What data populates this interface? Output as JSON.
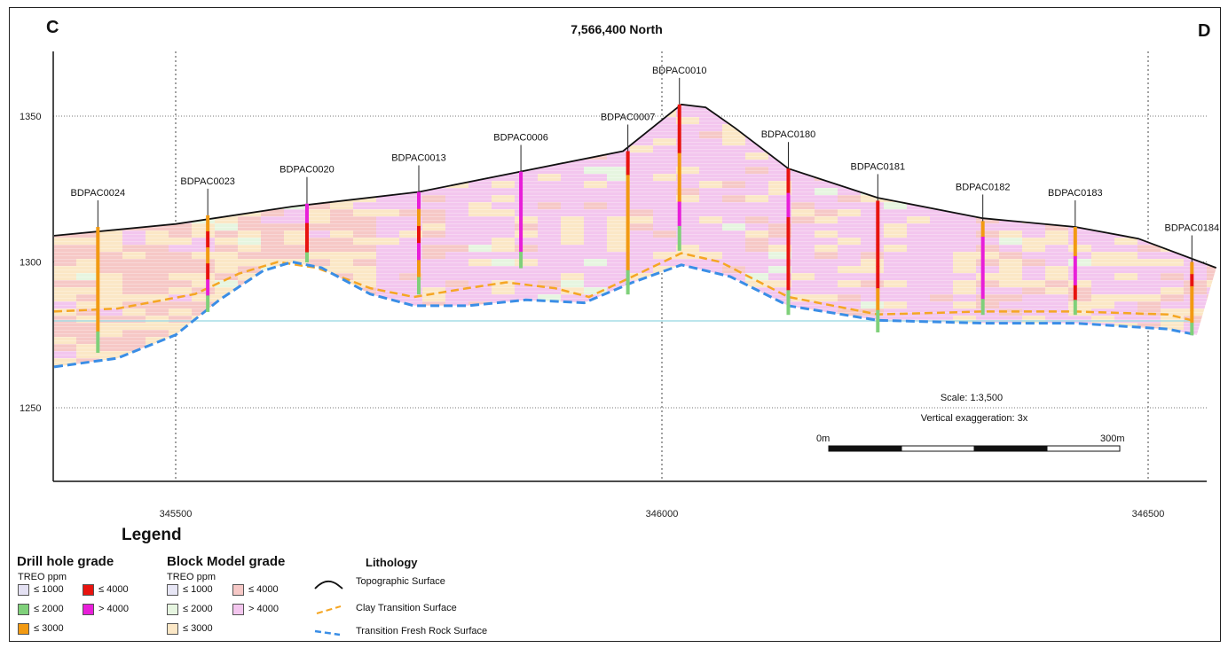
{
  "header": {
    "left_label": "C",
    "right_label": "D",
    "title": "7,566,400 North"
  },
  "axes": {
    "y_ticks": [
      "1350",
      "1300",
      "1250"
    ],
    "x_ticks": [
      "345500",
      "346000",
      "346500"
    ]
  },
  "colors": {
    "topographic": "#111111",
    "clay_transition": "#f5a623",
    "fresh_rock": "#3a8ee6",
    "block_low": "#fbe7c6",
    "block_2000": "#e6f5e0",
    "block_4000": "#f6c8c6",
    "block_high": "#f3c6ee",
    "reference_line": "#a6dde6"
  },
  "drill_holes": [
    {
      "name": "BDPAC0024",
      "easting": 345420,
      "collar": 1312,
      "bottom": 1269
    },
    {
      "name": "BDPAC0023",
      "easting": 345533,
      "collar": 1316,
      "bottom": 1283
    },
    {
      "name": "BDPAC0020",
      "easting": 345635,
      "collar": 1320,
      "bottom": 1300
    },
    {
      "name": "BDPAC0013",
      "easting": 345750,
      "collar": 1324,
      "bottom": 1289
    },
    {
      "name": "BDPAC0006",
      "easting": 345855,
      "collar": 1331,
      "bottom": 1298
    },
    {
      "name": "BDPAC0007",
      "easting": 345965,
      "collar": 1338,
      "bottom": 1289
    },
    {
      "name": "BDPAC0010",
      "easting": 346018,
      "collar": 1354,
      "bottom": 1304
    },
    {
      "name": "BDPAC0180",
      "easting": 346130,
      "collar": 1332,
      "bottom": 1282
    },
    {
      "name": "BDPAC0181",
      "easting": 346222,
      "collar": 1321,
      "bottom": 1276
    },
    {
      "name": "BDPAC0182",
      "easting": 346330,
      "collar": 1314,
      "bottom": 1282
    },
    {
      "name": "BDPAC0183",
      "easting": 346425,
      "collar": 1312,
      "bottom": 1282
    },
    {
      "name": "BDPAC0184",
      "easting": 346545,
      "collar": 1300,
      "bottom": 1275
    }
  ],
  "surfaces": {
    "topographic": [
      [
        345375,
        1309
      ],
      [
        345500,
        1313
      ],
      [
        345620,
        1319
      ],
      [
        345750,
        1324
      ],
      [
        345855,
        1331
      ],
      [
        345960,
        1338
      ],
      [
        345990,
        1346
      ],
      [
        346020,
        1354
      ],
      [
        346045,
        1353
      ],
      [
        346075,
        1346
      ],
      [
        346130,
        1332
      ],
      [
        346222,
        1322
      ],
      [
        346330,
        1315
      ],
      [
        346425,
        1312
      ],
      [
        346490,
        1308
      ],
      [
        346570,
        1298
      ]
    ],
    "clay_transition": [
      [
        345375,
        1283
      ],
      [
        345440,
        1284
      ],
      [
        345520,
        1289
      ],
      [
        345565,
        1296
      ],
      [
        345605,
        1300
      ],
      [
        345645,
        1298
      ],
      [
        345700,
        1291
      ],
      [
        345745,
        1288
      ],
      [
        345800,
        1291
      ],
      [
        345840,
        1293
      ],
      [
        345890,
        1291
      ],
      [
        345925,
        1288
      ],
      [
        345970,
        1295
      ],
      [
        346020,
        1303
      ],
      [
        346060,
        1300
      ],
      [
        346130,
        1288
      ],
      [
        346222,
        1282
      ],
      [
        346330,
        1283
      ],
      [
        346425,
        1283
      ],
      [
        346520,
        1282
      ],
      [
        346545,
        1280
      ]
    ],
    "fresh_rock": [
      [
        345375,
        1264
      ],
      [
        345440,
        1267
      ],
      [
        345500,
        1275
      ],
      [
        345545,
        1287
      ],
      [
        345590,
        1297
      ],
      [
        345620,
        1300
      ],
      [
        345650,
        1298
      ],
      [
        345700,
        1289
      ],
      [
        345745,
        1285
      ],
      [
        345800,
        1285
      ],
      [
        345860,
        1287
      ],
      [
        345920,
        1286
      ],
      [
        345970,
        1293
      ],
      [
        346020,
        1299
      ],
      [
        346070,
        1295
      ],
      [
        346130,
        1285
      ],
      [
        346222,
        1280
      ],
      [
        346330,
        1279
      ],
      [
        346425,
        1279
      ],
      [
        346520,
        1277
      ],
      [
        346550,
        1275
      ]
    ]
  },
  "scale": {
    "scale_text": "Scale: 1:3,500",
    "exaggeration_text": "Vertical exaggeration: 3x",
    "left_label": "0m",
    "right_label": "300m"
  },
  "legend": {
    "title": "Legend",
    "drill_hole": {
      "heading": "Drill hole grade",
      "unit": "TREO ppm",
      "items": [
        {
          "label": "≤ 1000",
          "color": "#e4e1f3"
        },
        {
          "label": "≤ 4000",
          "color": "#e8140f"
        },
        {
          "label": "≤ 2000",
          "color": "#7fd07a"
        },
        {
          "label": "> 4000",
          "color": "#e81fd9"
        },
        {
          "label": "≤ 3000",
          "color": "#f29a12"
        }
      ]
    },
    "block_model": {
      "heading": "Block Model grade",
      "unit": "TREO ppm",
      "items": [
        {
          "label": "≤ 1000",
          "color": "#e7e6f5"
        },
        {
          "label": "≤ 4000",
          "color": "#f6c8c6"
        },
        {
          "label": "≤ 2000",
          "color": "#e6f5e0"
        },
        {
          "label": "> 4000",
          "color": "#f3c6ee"
        },
        {
          "label": "≤ 3000",
          "color": "#fbe7c6"
        }
      ]
    },
    "lithology": {
      "heading": "Lithology",
      "items": [
        {
          "label": "Topographic Surface",
          "icon": "topographic-line-icon"
        },
        {
          "label": "Clay Transition Surface",
          "icon": "clay-dash-icon"
        },
        {
          "label": "Transition Fresh Rock Surface",
          "icon": "fresh-rock-dash-icon"
        }
      ]
    }
  }
}
